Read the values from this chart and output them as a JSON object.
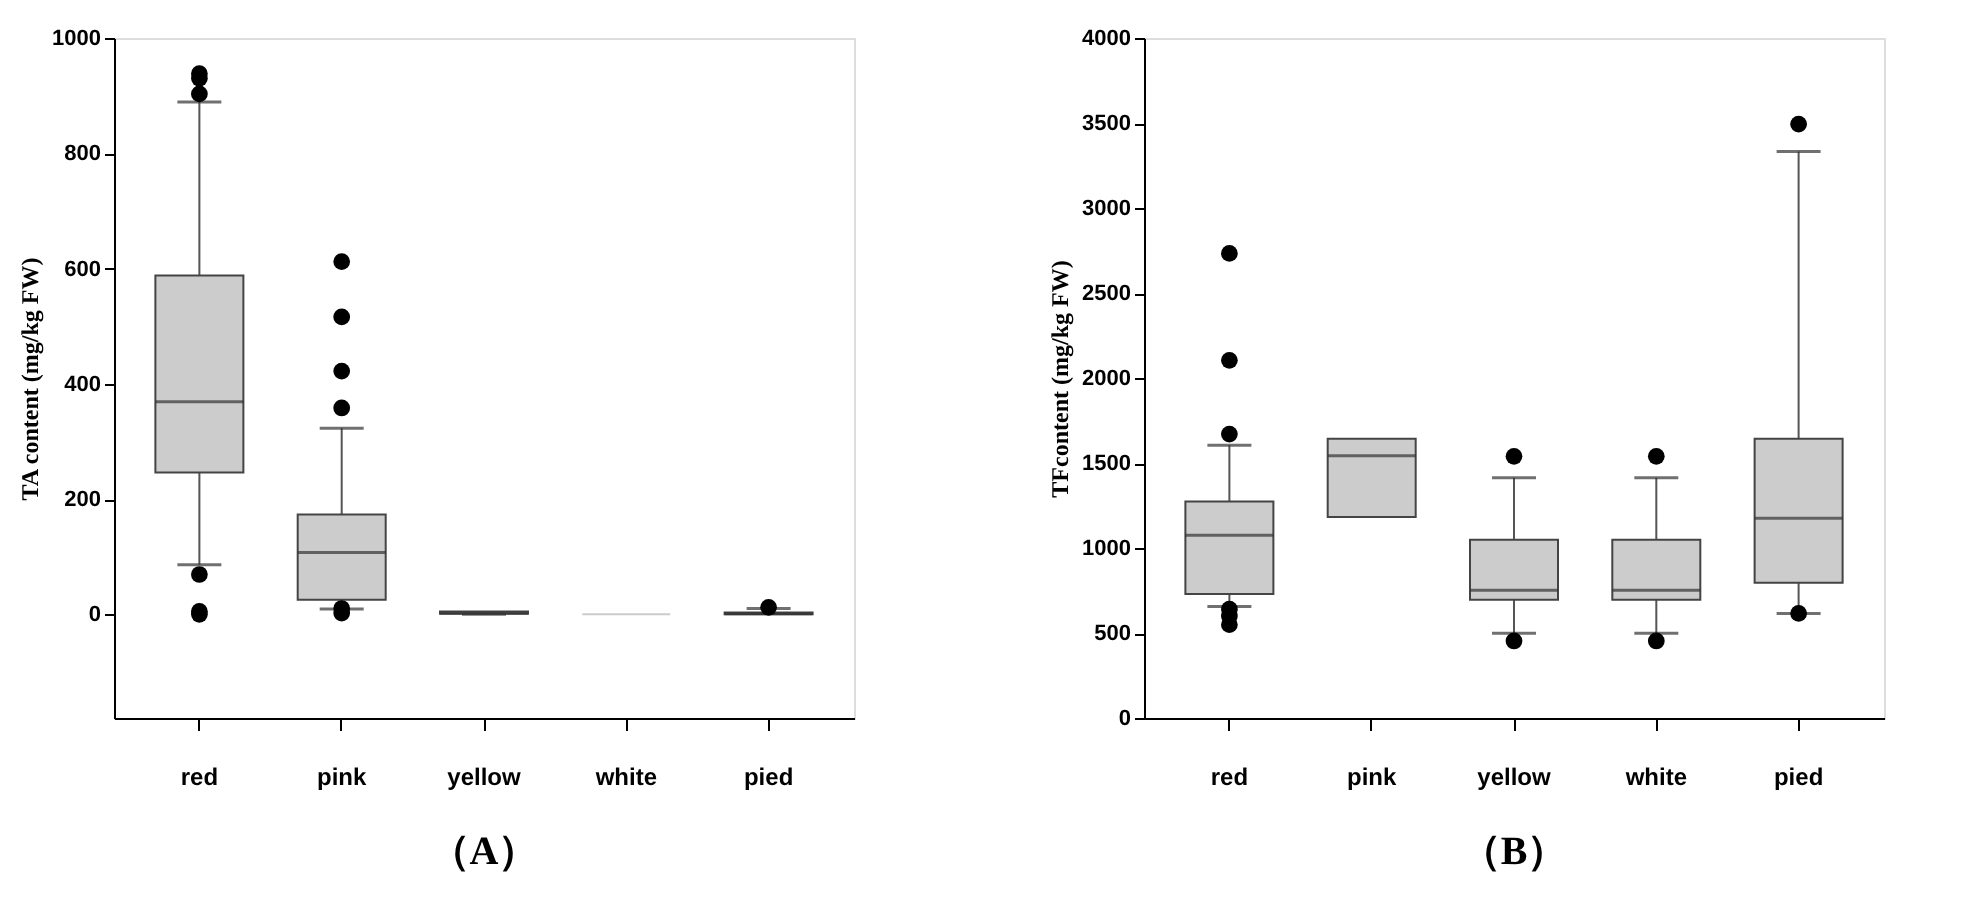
{
  "chart_data": [
    {
      "type": "box",
      "title": "（A）",
      "ylabel": "TA content (mg/kg FW)",
      "categories": [
        "red",
        "pink",
        "yellow",
        "white",
        "pied"
      ],
      "ylim": [
        -180,
        1000
      ],
      "yticks": [
        0,
        200,
        400,
        600,
        800,
        1000
      ],
      "grid": false,
      "color": "#cccccc",
      "boxes": [
        {
          "low": 86,
          "q1": 246,
          "median": 369,
          "q3": 588,
          "high": 889,
          "outliers": [
            938,
            930,
            903,
            69,
            5,
            0
          ]
        },
        {
          "low": 9,
          "q1": 25,
          "median": 107,
          "q3": 173,
          "high": 323,
          "outliers": [
            612,
            516,
            422,
            358,
            10,
            2
          ]
        },
        {
          "low": 0,
          "q1": 1,
          "median": 2,
          "q3": 5,
          "high": 5
        },
        {
          "low": 0,
          "q1": 0,
          "median": 0,
          "q3": 0,
          "high": 0
        },
        {
          "low": 0,
          "q1": 0,
          "median": 1,
          "q3": 3,
          "high": 10,
          "outliers": [
            12
          ]
        }
      ]
    },
    {
      "type": "box",
      "title": "（B）",
      "ylabel": "TFcontent (mg/kg FW)",
      "categories": [
        "red",
        "pink",
        "yellow",
        "white",
        "pied"
      ],
      "ylim": [
        0,
        4000
      ],
      "yticks": [
        0,
        500,
        1000,
        1500,
        2000,
        2500,
        3000,
        3500,
        4000
      ],
      "grid": false,
      "color": "#cccccc",
      "boxes": [
        {
          "low": 656,
          "q1": 729,
          "median": 1075,
          "q3": 1274,
          "high": 1605,
          "outliers": [
            2733,
            2104,
            1670,
            640,
            600,
            549
          ]
        },
        {
          "low": 1182,
          "q1": 1182,
          "median": 1543,
          "q3": 1643,
          "high": 1643
        },
        {
          "low": 499,
          "q1": 695,
          "median": 752,
          "q3": 1048,
          "high": 1413,
          "outliers": [
            1539,
            453
          ]
        },
        {
          "low": 499,
          "q1": 695,
          "median": 752,
          "q3": 1048,
          "high": 1413,
          "outliers": [
            1539,
            453
          ]
        },
        {
          "low": 614,
          "q1": 795,
          "median": 1175,
          "q3": 1643,
          "high": 3332,
          "outliers": [
            3493,
            615
          ]
        }
      ]
    }
  ]
}
